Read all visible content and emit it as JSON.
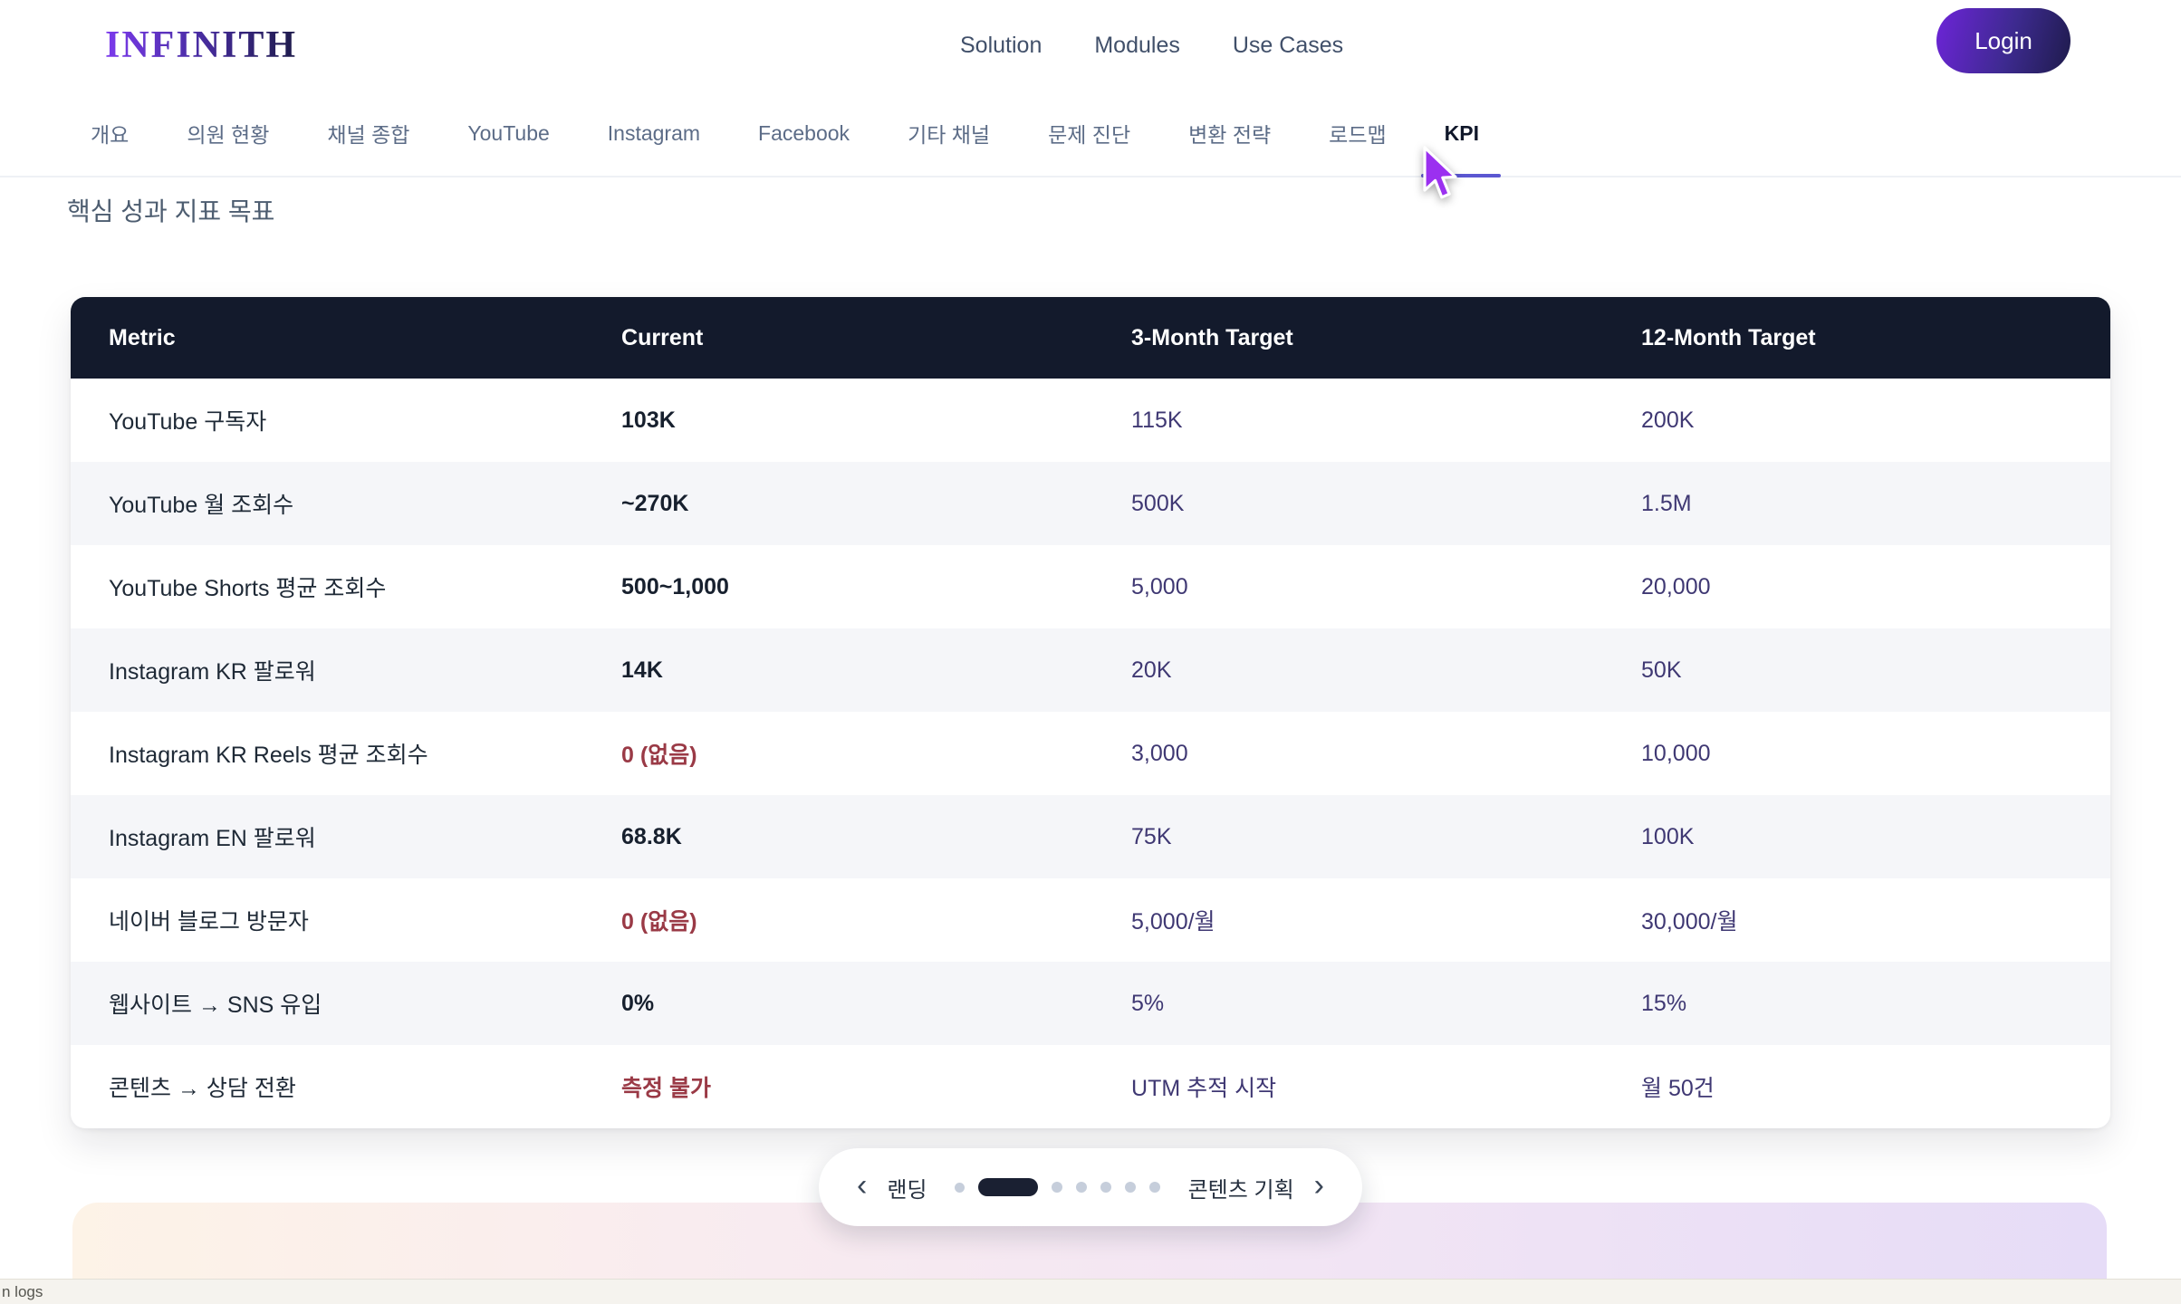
{
  "header": {
    "logo": "INFINITH",
    "nav": [
      {
        "label": "Solution"
      },
      {
        "label": "Modules"
      },
      {
        "label": "Use Cases"
      }
    ],
    "login_label": "Login"
  },
  "tabs": {
    "items": [
      {
        "id": "overview",
        "label": "개요"
      },
      {
        "id": "member-status",
        "label": "의원 현황"
      },
      {
        "id": "channel-summary",
        "label": "채널 종합"
      },
      {
        "id": "youtube",
        "label": "YouTube"
      },
      {
        "id": "instagram",
        "label": "Instagram"
      },
      {
        "id": "facebook",
        "label": "Facebook"
      },
      {
        "id": "other-channels",
        "label": "기타 채널"
      },
      {
        "id": "problem-diagnosis",
        "label": "문제 진단"
      },
      {
        "id": "conversion-strategy",
        "label": "변환 전략"
      },
      {
        "id": "roadmap",
        "label": "로드맵"
      },
      {
        "id": "kpi",
        "label": "KPI"
      }
    ],
    "active": "KPI"
  },
  "page": {
    "section_title": "핵심 성과 지표 목표"
  },
  "table": {
    "columns": [
      "Metric",
      "Current",
      "3-Month Target",
      "12-Month Target"
    ],
    "rows": [
      {
        "metric": "YouTube 구독자",
        "current": "103K",
        "alert": false,
        "target_3m": "115K",
        "target_12m": "200K"
      },
      {
        "metric": "YouTube 월 조회수",
        "current": "~270K",
        "alert": false,
        "target_3m": "500K",
        "target_12m": "1.5M"
      },
      {
        "metric": "YouTube Shorts 평균 조회수",
        "current": "500~1,000",
        "alert": false,
        "target_3m": "5,000",
        "target_12m": "20,000"
      },
      {
        "metric": "Instagram KR 팔로워",
        "current": "14K",
        "alert": false,
        "target_3m": "20K",
        "target_12m": "50K"
      },
      {
        "metric": "Instagram KR Reels 평균 조회수",
        "current": "0 (없음)",
        "alert": true,
        "target_3m": "3,000",
        "target_12m": "10,000"
      },
      {
        "metric": "Instagram EN 팔로워",
        "current": "68.8K",
        "alert": false,
        "target_3m": "75K",
        "target_12m": "100K"
      },
      {
        "metric": "네이버 블로그 방문자",
        "current": "0 (없음)",
        "alert": true,
        "target_3m": "5,000/월",
        "target_12m": "30,000/월"
      },
      {
        "metric": "웹사이트 → SNS 유입",
        "current": "0%",
        "alert": false,
        "target_3m": "5%",
        "target_12m": "15%"
      },
      {
        "metric": "콘텐츠 → 상담 전환",
        "current": "측정 불가",
        "alert": true,
        "target_3m": "UTM 추적 시작",
        "target_12m": "월 50건"
      }
    ]
  },
  "carousel": {
    "prev_label": "랜딩",
    "next_label": "콘텐츠 기획",
    "prev_icon": "‹",
    "next_icon": "›",
    "dots_total": 7,
    "active_dot_index": 1
  },
  "status_bar": {
    "text": "n logs"
  },
  "colors": {
    "accent_purple": "#5b57d1",
    "header_navy": "#131a2c",
    "target_text": "#3f3873",
    "alert_red": "#9a3a46",
    "login_gradient_start": "#6d24d8",
    "login_gradient_end": "#1e1b4b"
  }
}
